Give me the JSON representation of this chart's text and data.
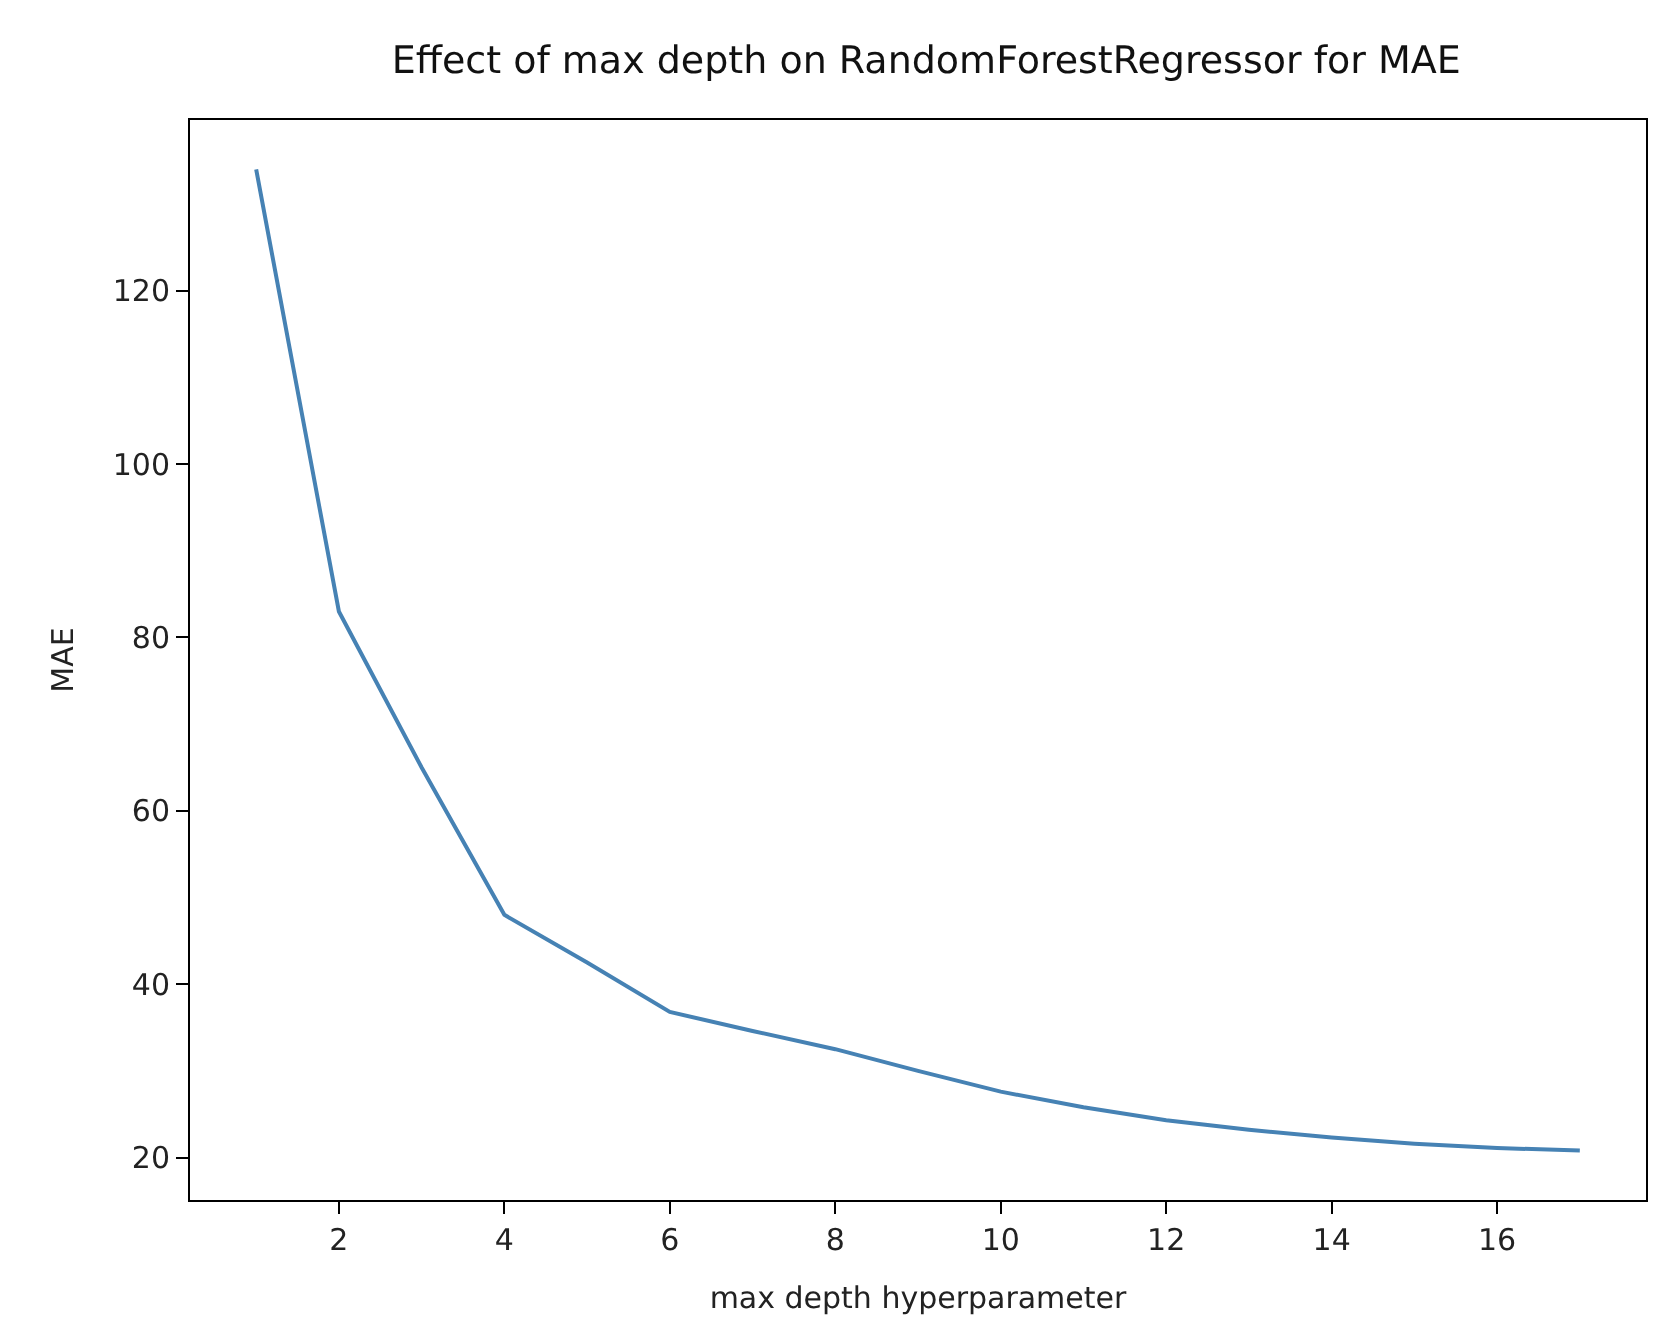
{
  "chart_data": {
    "type": "line",
    "title": "Effect of max depth on RandomForestRegressor for MAE",
    "xlabel": "max depth hyperparameter",
    "ylabel": "MAE",
    "x": [
      1,
      2,
      3,
      4,
      5,
      6,
      7,
      8,
      9,
      10,
      11,
      12,
      13,
      14,
      15,
      16,
      17
    ],
    "series": [
      {
        "color": "#4682b4",
        "values": [
          134,
          83,
          65,
          48,
          42.5,
          36.8,
          34.6,
          32.5,
          30,
          27.6,
          25.8,
          24.3,
          23.2,
          22.3,
          21.6,
          21.1,
          20.8
        ]
      }
    ],
    "xlim": [
      0.2,
      17.8
    ],
    "ylim": [
      15.1,
      139.7
    ],
    "xticks": [
      2,
      4,
      6,
      8,
      10,
      12,
      14,
      16
    ],
    "yticks": [
      20,
      40,
      60,
      80,
      100,
      120
    ],
    "marker": "none",
    "line_style": "solid"
  }
}
